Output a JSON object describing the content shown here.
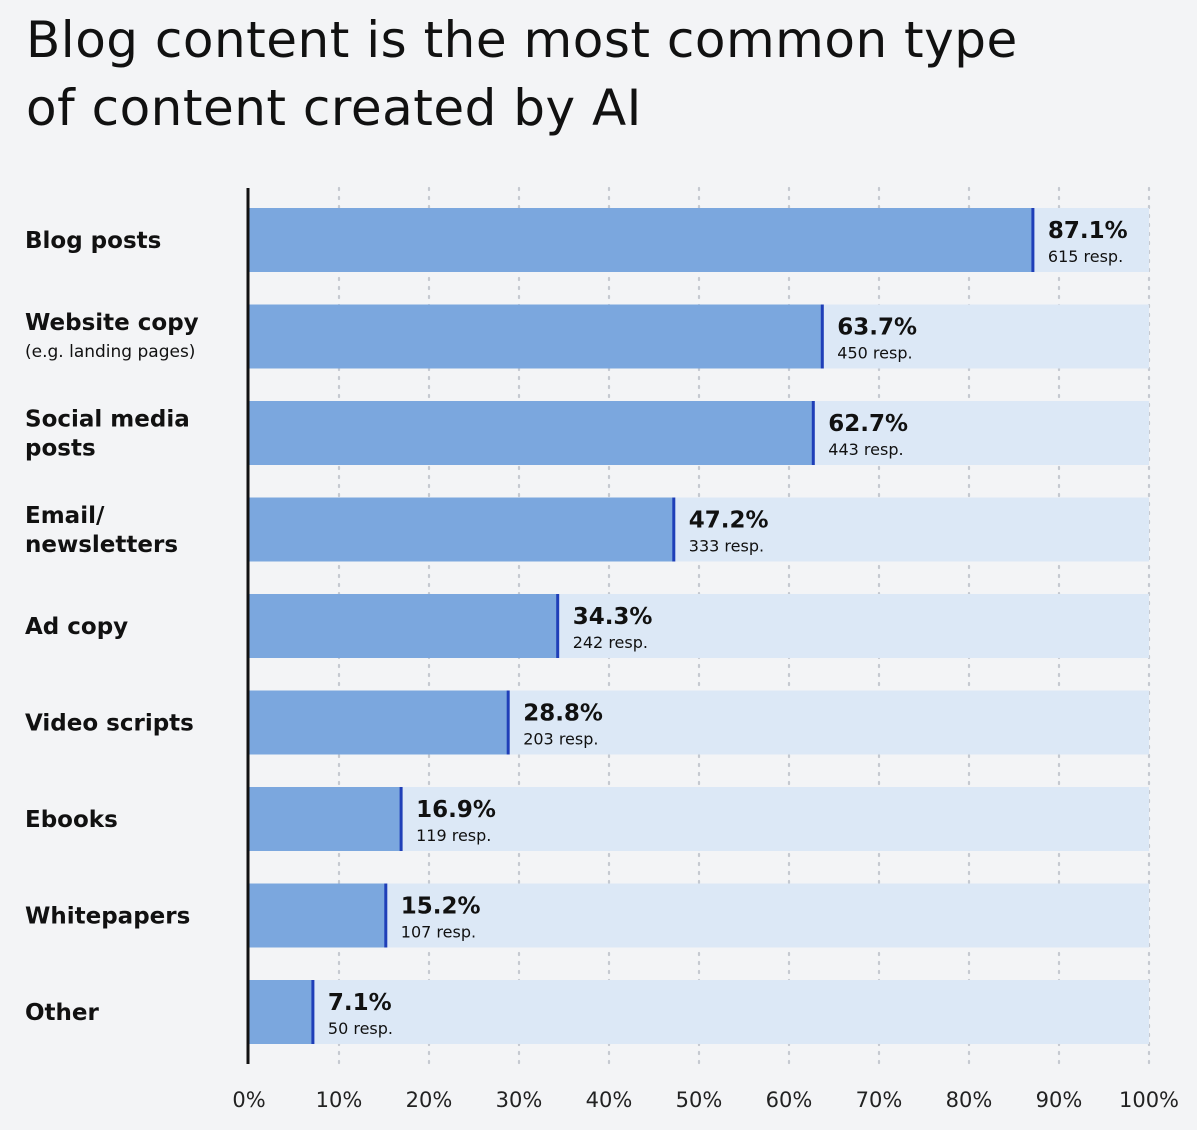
{
  "title_lines": [
    "Blog content is the most common type",
    "of content created by AI"
  ],
  "colors": {
    "background": "#f3f4f6",
    "bar_fill": "#7ba7de",
    "bar_track": "#dce8f6",
    "bar_end_line": "#1f3fb8",
    "axis": "#111111",
    "grid": "#c5c9d0"
  },
  "chart_data": {
    "type": "bar",
    "orientation": "horizontal",
    "title": "Blog content is the most common type of content created by AI",
    "xlabel": "",
    "ylabel": "",
    "xlim": [
      0,
      100
    ],
    "grid": true,
    "grid_style": "dotted",
    "x_ticks": [
      "0%",
      "10%",
      "20%",
      "30%",
      "40%",
      "50%",
      "60%",
      "70%",
      "80%",
      "90%",
      "100%"
    ],
    "categories": [
      {
        "lines": [
          "Blog posts"
        ],
        "sub": "",
        "value": 87.1,
        "value_label": "87.1%",
        "resp": "615 resp."
      },
      {
        "lines": [
          "Website copy"
        ],
        "sub": "(e.g. landing pages)",
        "value": 63.7,
        "value_label": "63.7%",
        "resp": "450 resp."
      },
      {
        "lines": [
          "Social media",
          "posts"
        ],
        "sub": "",
        "value": 62.7,
        "value_label": "62.7%",
        "resp": "443 resp."
      },
      {
        "lines": [
          "Email/",
          "newsletters"
        ],
        "sub": "",
        "value": 47.2,
        "value_label": "47.2%",
        "resp": "333 resp."
      },
      {
        "lines": [
          "Ad copy"
        ],
        "sub": "",
        "value": 34.3,
        "value_label": "34.3%",
        "resp": "242 resp."
      },
      {
        "lines": [
          "Video scripts"
        ],
        "sub": "",
        "value": 28.8,
        "value_label": "28.8%",
        "resp": "203 resp."
      },
      {
        "lines": [
          "Ebooks"
        ],
        "sub": "",
        "value": 16.9,
        "value_label": "16.9%",
        "resp": "119 resp."
      },
      {
        "lines": [
          "Whitepapers"
        ],
        "sub": "",
        "value": 15.2,
        "value_label": "15.2%",
        "resp": "107 resp."
      },
      {
        "lines": [
          "Other"
        ],
        "sub": "",
        "value": 7.1,
        "value_label": "7.1%",
        "resp": "50 resp."
      }
    ]
  }
}
